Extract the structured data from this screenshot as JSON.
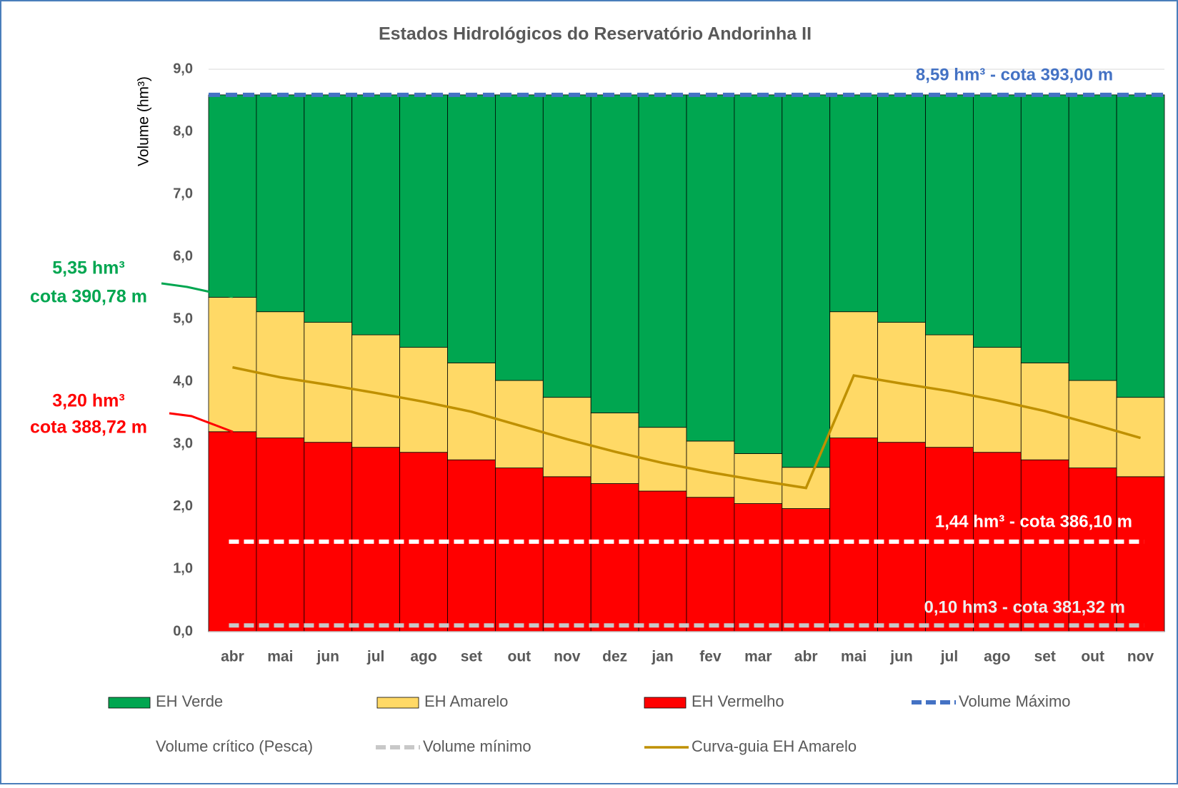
{
  "chart_data": {
    "type": "stacked-bar-line",
    "title": "Estados Hidrológicos do Reservatório Andorinha II",
    "y_label": "Volume (hm³)",
    "categories": [
      "abr",
      "mai",
      "jun",
      "jul",
      "ago",
      "set",
      "out",
      "nov",
      "dez",
      "jan",
      "fev",
      "mar",
      "abr",
      "mai",
      "jun",
      "jul",
      "ago",
      "set",
      "out",
      "nov"
    ],
    "ylim": [
      0,
      9
    ],
    "yticks": [
      {
        "value": 0,
        "label": "0,0"
      },
      {
        "value": 1,
        "label": "1,0"
      },
      {
        "value": 2,
        "label": "2,0"
      },
      {
        "value": 3,
        "label": "3,0"
      },
      {
        "value": 4,
        "label": "4,0"
      },
      {
        "value": 5,
        "label": "5,0"
      },
      {
        "value": 6,
        "label": "6,0"
      },
      {
        "value": 7,
        "label": "7,0"
      },
      {
        "value": 8,
        "label": "8,0"
      },
      {
        "value": 9,
        "label": "9,0"
      }
    ],
    "series": [
      {
        "name": "EH Verde",
        "kind": "bar",
        "color": "#00a650",
        "values": [
          3.24,
          3.47,
          3.64,
          3.84,
          4.04,
          4.29,
          4.57,
          4.84,
          5.09,
          5.32,
          5.54,
          5.74,
          5.96,
          3.47,
          3.64,
          3.84,
          4.04,
          4.29,
          4.57,
          4.84
        ]
      },
      {
        "name": "EH Amarelo",
        "kind": "bar",
        "color": "#ffd966",
        "values": [
          2.15,
          2.02,
          1.92,
          1.8,
          1.68,
          1.55,
          1.4,
          1.27,
          1.13,
          1.02,
          0.9,
          0.8,
          0.66,
          2.02,
          1.92,
          1.8,
          1.68,
          1.55,
          1.4,
          1.27
        ]
      },
      {
        "name": "EH Vermelho",
        "kind": "bar",
        "color": "#ff0000",
        "values": [
          3.2,
          3.1,
          3.03,
          2.95,
          2.87,
          2.75,
          2.62,
          2.48,
          2.37,
          2.25,
          2.15,
          2.05,
          1.97,
          3.1,
          3.03,
          2.95,
          2.87,
          2.75,
          2.62,
          2.48
        ]
      },
      {
        "name": "Volume Máximo",
        "kind": "hline",
        "color": "#4472c4",
        "value": 8.59
      },
      {
        "name": "Volume crítico (Pesca)",
        "kind": "hline",
        "color": "#ffffff",
        "value": 1.44
      },
      {
        "name": "Volume mínimo",
        "kind": "hline",
        "color": "#c8c8c8",
        "value": 0.1
      },
      {
        "name": "Curva-guia EH Amarelo",
        "kind": "line",
        "color": "#bf9000",
        "values": [
          4.23,
          4.07,
          3.95,
          3.82,
          3.68,
          3.52,
          3.3,
          3.08,
          2.88,
          2.7,
          2.55,
          2.42,
          2.3,
          4.1,
          3.97,
          3.85,
          3.7,
          3.53,
          3.32,
          3.1
        ]
      }
    ],
    "annotations": [
      {
        "text": "8,59 hm³ - cota 393,00 m",
        "color": "#4472c4"
      },
      {
        "text": "1,44 hm³ - cota 386,10 m",
        "color": "#ffffff"
      },
      {
        "text": "0,10 hm3 - cota 381,32 m",
        "color": "#eeeeee"
      },
      {
        "text": "5,35 hm³",
        "color": "#00a650"
      },
      {
        "text": "cota 390,78 m",
        "color": "#00a650"
      },
      {
        "text": "3,20 hm³",
        "color": "#ff0000"
      },
      {
        "text": "cota 388,72 m",
        "color": "#ff0000"
      }
    ]
  }
}
